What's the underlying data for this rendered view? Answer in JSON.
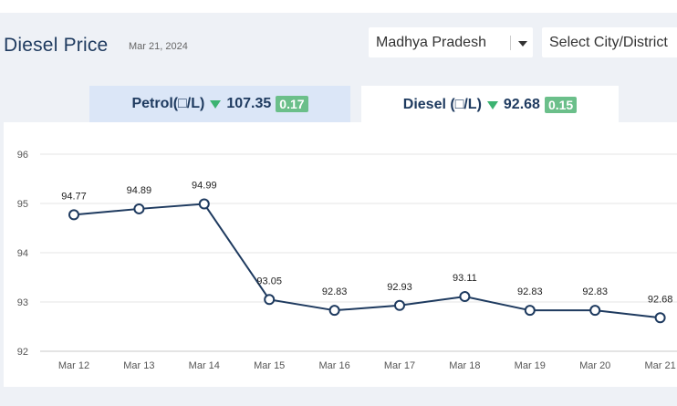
{
  "header": {
    "title": "Diesel Price",
    "date": "Mar 21, 2024"
  },
  "filters": {
    "state": "Madhya Pradesh",
    "city": "Select City/District"
  },
  "tabs": [
    {
      "label": "Petrol(□/L)",
      "value": "107.35",
      "change": "0.17"
    },
    {
      "label": "Diesel (□/L)",
      "value": "92.68",
      "change": "0.15"
    }
  ],
  "colors": {
    "line": "#1e3a5f",
    "badge": "#6bbf8a",
    "down_arrow": "#3cb371",
    "active_tab": "#ffffff",
    "inactive_tab": "#dbe6f7"
  },
  "chart_data": {
    "type": "line",
    "categories": [
      "Mar 12",
      "Mar 13",
      "Mar 14",
      "Mar 15",
      "Mar 16",
      "Mar 17",
      "Mar 18",
      "Mar 19",
      "Mar 20",
      "Mar 21"
    ],
    "values": [
      94.77,
      94.89,
      94.99,
      93.05,
      92.83,
      92.93,
      93.11,
      92.83,
      92.83,
      92.68
    ],
    "labels": [
      "94.77",
      "94.89",
      "94.99",
      "93.05",
      "92.83",
      "92.93",
      "93.11",
      "92.83",
      "92.83",
      "92.68"
    ],
    "yticks": [
      92,
      93,
      94,
      95,
      96
    ],
    "ylim": [
      92,
      96
    ],
    "grid": true
  }
}
